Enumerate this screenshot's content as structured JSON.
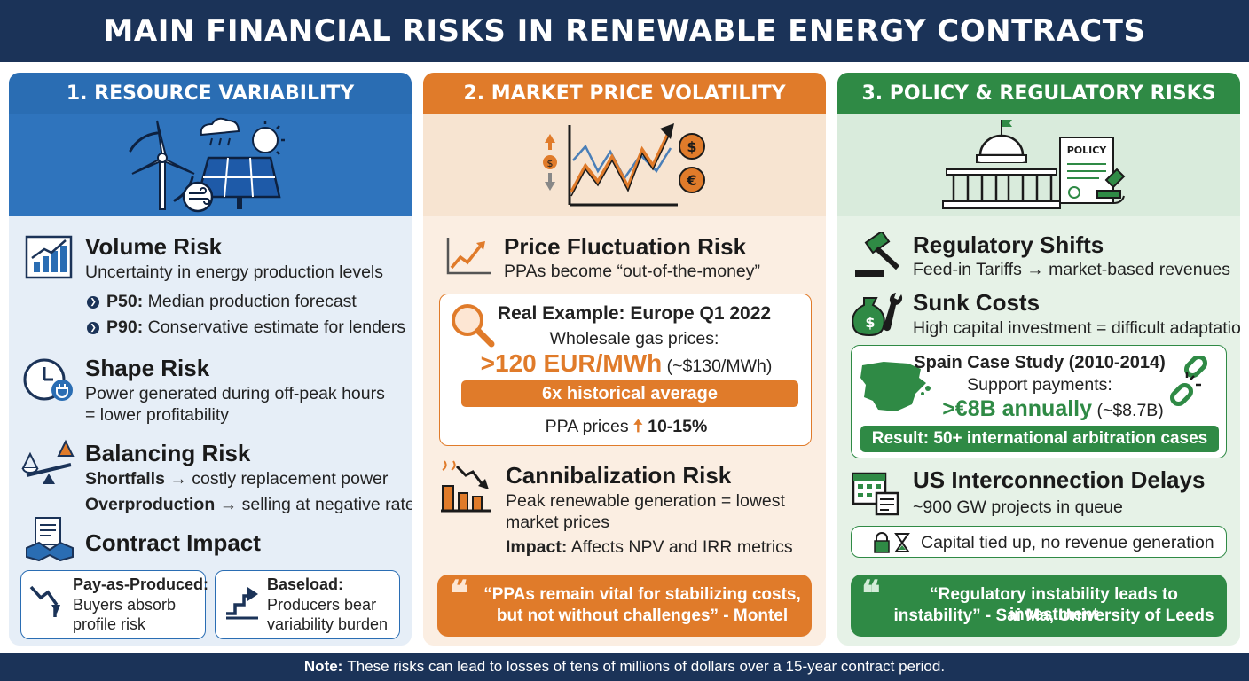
{
  "title": "MAIN FINANCIAL RISKS IN RENEWABLE ENERGY CONTRACTS",
  "footer": {
    "note_label": "Note:",
    "note_text": "These risks can lead to losses of tens of millions of dollars over a 15-year contract period."
  },
  "colors": {
    "navy": "#1b3358",
    "blue": "#2a6db3",
    "orange": "#e07b2a",
    "green": "#2f8a45"
  },
  "col1": {
    "header": "1. RESOURCE VARIABILITY",
    "volume": {
      "title": "Volume Risk",
      "desc": "Uncertainty in energy production levels",
      "b1_label": "P50:",
      "b1_text": "Median production forecast",
      "b2_label": "P90:",
      "b2_text": "Conservative estimate for lenders"
    },
    "shape": {
      "title": "Shape Risk",
      "line1": "Power generated during off-peak hours",
      "line2": "= lower profitability"
    },
    "balancing": {
      "title": "Balancing Risk",
      "l1_label": "Shortfalls",
      "l1_text": "→ costly replacement power",
      "l2_label": "Overproduction",
      "l2_text": "→ selling at negative rates"
    },
    "contract": {
      "title": "Contract Impact",
      "left_label": "Pay-as-Produced:",
      "left_l1": "Buyers absorb",
      "left_l2": "profile risk",
      "right_label": "Baseload:",
      "right_l1": "Producers bear",
      "right_l2": "variability burden"
    }
  },
  "col2": {
    "header": "2. MARKET PRICE VOLATILITY",
    "fluct": {
      "title": "Price Fluctuation Risk",
      "desc": "PPAs become “out-of-the-money”"
    },
    "example": {
      "title": "Real Example: Europe Q1 2022",
      "line1": "Wholesale gas prices:",
      "big": ">120 EUR/MWh",
      "usd": "(~$130/MWh)",
      "banner": "6x historical average",
      "ppa_text": "PPA prices",
      "ppa_value": "10-15%"
    },
    "cannibal": {
      "title": "Cannibalization Risk",
      "line1": "Peak renewable generation = lowest",
      "line2": "market prices",
      "impact_label": "Impact:",
      "impact_text": "Affects NPV and IRR metrics"
    },
    "quote": {
      "line1": "“PPAs remain vital for stabilizing costs,",
      "line2": "but not without challenges” - Montel"
    }
  },
  "col3": {
    "header": "3. POLICY & REGULATORY RISKS",
    "policy_doc": "POLICY",
    "reg": {
      "title": "Regulatory Shifts",
      "desc": "Feed-in Tariffs → market-based revenues"
    },
    "sunk": {
      "title": "Sunk Costs",
      "desc": "High capital investment = difficult adaptation"
    },
    "spain": {
      "title": "Spain Case Study (2010-2014)",
      "line1": "Support payments:",
      "big": ">€8B annually",
      "usd": "(~$8.7B)",
      "result": "Result: 50+ international arbitration cases"
    },
    "us": {
      "title": "US Interconnection Delays",
      "desc": "~900 GW projects in queue",
      "capital": "Capital tied up, no revenue generation"
    },
    "quote": {
      "line1": "“Regulatory instability leads to investment",
      "line2": "instability” - Sai Ma, University of Leeds"
    }
  }
}
